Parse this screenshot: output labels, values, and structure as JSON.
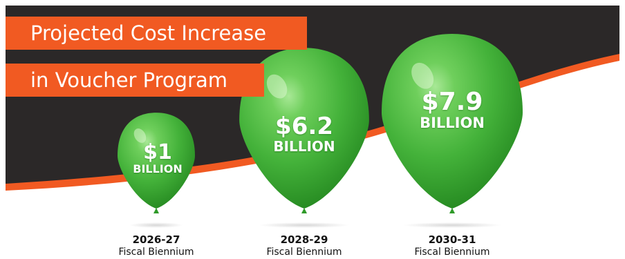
{
  "title": {
    "line1": "Projected Cost Increase",
    "line2": "in Voucher Program"
  },
  "colors": {
    "accent": "#f15a22",
    "dark_band": "#2b2828",
    "balloon": "#44b23a",
    "balloon_highlight": "#9ae08a",
    "balloon_shadow": "#1f7a1c"
  },
  "chart_data": {
    "type": "bar",
    "title": "Projected Cost Increase in Voucher Program",
    "categories": [
      "2026-27",
      "2028-29",
      "2030-31"
    ],
    "category_sublabel": "Fiscal Biennium",
    "values": [
      1,
      6.2,
      7.9
    ],
    "unit": "BILLION",
    "value_labels": [
      "$1",
      "$6.2",
      "$7.9"
    ],
    "xlabel": "",
    "ylabel": ""
  }
}
